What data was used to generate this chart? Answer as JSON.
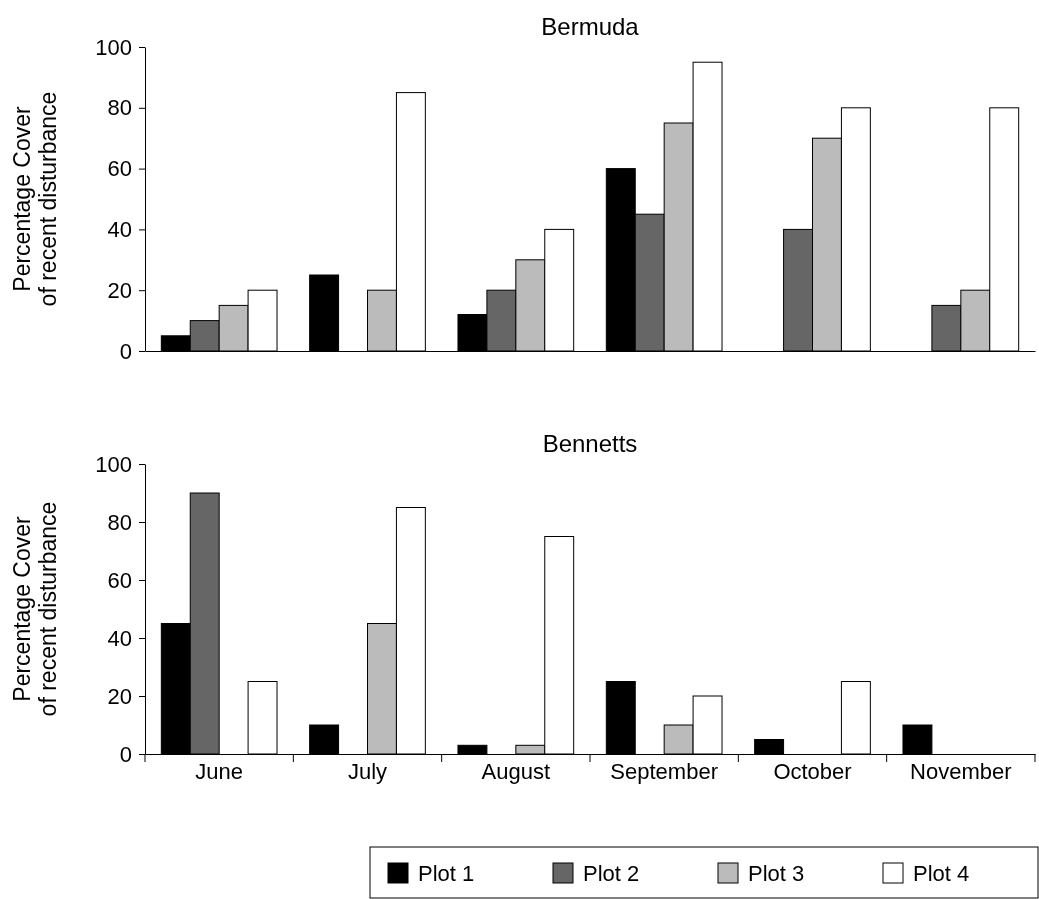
{
  "chart_data": [
    {
      "type": "bar",
      "title": "Bermuda",
      "ylabel": "Percentage Cover\nof recent disturbance",
      "categories": [
        null,
        null,
        null,
        null,
        null,
        null
      ],
      "tick_labels": "y",
      "ylim": [
        0,
        100
      ],
      "yticks": [
        0,
        20,
        40,
        60,
        80,
        100
      ],
      "series": [
        {
          "color": "#000000",
          "values": [
            5,
            25,
            12,
            60,
            null,
            null
          ]
        },
        {
          "color": "#666666",
          "values": [
            10,
            null,
            20,
            45,
            40,
            15
          ]
        },
        {
          "color": "#bbbbbb",
          "values": [
            15,
            20,
            30,
            75,
            70,
            20
          ]
        },
        {
          "color": "#ffffff",
          "values": [
            20,
            85,
            40,
            95,
            80,
            80
          ]
        }
      ]
    },
    {
      "type": "bar",
      "title": "Bennetts",
      "ylabel": "Percentage Cover\nof recent disturbance",
      "categories": [
        "June",
        "July",
        "August",
        "September",
        "October",
        "November"
      ],
      "ylim": [
        0,
        100
      ],
      "yticks": [
        0,
        20,
        40,
        60,
        80,
        100
      ],
      "legend": "bottom",
      "series": [
        {
          "name": "Plot 1",
          "color": "#000000",
          "values": [
            45,
            10,
            3,
            25,
            5,
            10
          ]
        },
        {
          "name": "Plot 2",
          "color": "#666666",
          "values": [
            90,
            null,
            null,
            null,
            null,
            null
          ]
        },
        {
          "name": "Plot 3",
          "color": "#bbbbbb",
          "values": [
            null,
            45,
            3,
            10,
            null,
            null
          ]
        },
        {
          "name": "Plot 4",
          "color": "#ffffff",
          "values": [
            25,
            85,
            75,
            20,
            25,
            null
          ]
        }
      ]
    }
  ]
}
